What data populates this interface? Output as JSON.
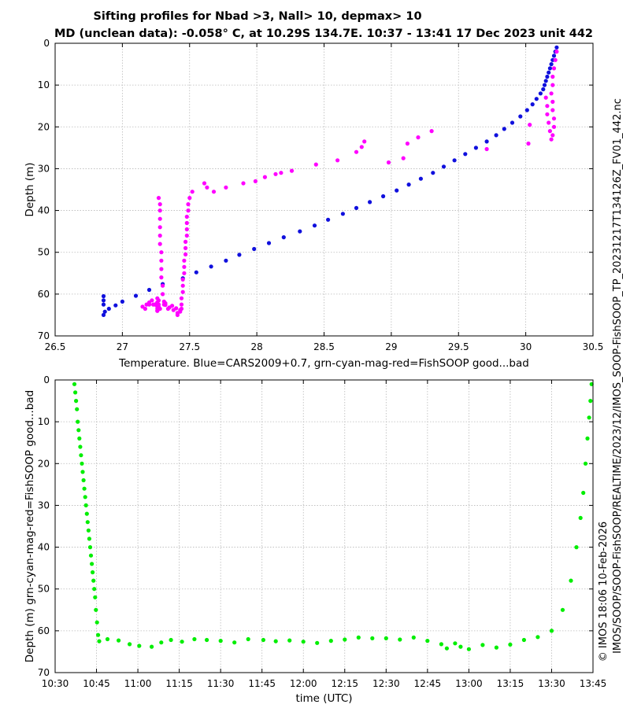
{
  "figure": {
    "title_line1": "Sifting profiles for Nbad >3, Nall> 10, depmax> 10",
    "title_line2": "MD (unclean data): -0.058° C, at 10.29S 134.7E. 10:37 - 13:41 17 Dec 2023 unit 442",
    "side_file": "IMOS_SOOP-FishSOOP_TP_20231217T134126Z_FV01_442.nc",
    "side_path": "IMOS/SOOP/SOOP-FishSOOP/REALTIME/2023/12/",
    "side_copyright": "© IMOS 18:06 10-Feb-2026"
  },
  "colors": {
    "blue": "#1010dd",
    "magenta": "#ff00ff",
    "green": "#00ee00"
  },
  "chart_data": [
    {
      "type": "scatter",
      "xlabel": "Temperature. Blue=CARS2009+0.7, grn-cyan-mag-red=FishSOOP good...bad",
      "ylabel": "Depth (m)",
      "xlim": [
        26.5,
        30.5
      ],
      "ylim": [
        0,
        70
      ],
      "y_reversed": true,
      "grid": true,
      "xticks": [
        "26.5",
        "27",
        "27.5",
        "28",
        "28.5",
        "29",
        "29.5",
        "30",
        "30.5"
      ],
      "yticks": [
        "0",
        "10",
        "20",
        "30",
        "40",
        "50",
        "60",
        "70"
      ],
      "series": [
        {
          "color": "blue",
          "x": [
            30.23,
            30.22,
            30.21,
            30.2,
            30.19,
            30.18,
            30.17,
            30.16,
            30.15,
            30.14,
            30.13,
            30.11,
            30.08,
            30.05,
            30.01,
            29.96,
            29.9,
            29.84,
            29.78,
            29.71,
            29.63,
            29.55,
            29.47,
            29.39,
            29.31,
            29.22,
            29.13,
            29.04,
            28.94,
            28.84,
            28.74,
            28.64,
            28.53,
            28.43,
            28.32,
            28.2,
            28.09,
            27.98,
            27.87,
            27.77,
            27.66,
            27.55,
            27.45,
            27.3,
            27.2,
            27.1,
            27.0,
            26.95,
            26.9,
            26.87,
            26.86,
            26.86,
            26.86,
            26.86
          ],
          "y": [
            1,
            2,
            3,
            4,
            5,
            6,
            7,
            8,
            9,
            10,
            11,
            12,
            13.3,
            14.6,
            16,
            17.5,
            19,
            20.5,
            22,
            23.5,
            25,
            26.5,
            28,
            29.5,
            31,
            32.4,
            33.8,
            35.2,
            36.6,
            38,
            39.4,
            40.8,
            42.2,
            43.6,
            45,
            46.4,
            47.8,
            49.2,
            50.6,
            52,
            53.4,
            54.8,
            56.2,
            57.6,
            59,
            60.4,
            61.8,
            62.7,
            63.5,
            64.2,
            65,
            60.5,
            61.5,
            62.5
          ]
        },
        {
          "color": "magenta",
          "x": [
            30.23,
            30.22,
            30.21,
            30.2,
            30.2,
            30.19,
            30.2,
            30.2,
            30.21,
            30.21,
            30.2,
            30.19,
            30.18,
            30.17,
            30.16,
            30.16,
            30.15,
            30.03,
            30.02,
            29.71,
            29.3,
            29.2,
            29.12,
            29.09,
            28.98,
            28.8,
            28.78,
            28.74,
            28.6,
            28.44,
            28.26,
            28.18,
            28.14,
            28.06,
            27.99,
            27.9,
            27.77,
            27.68,
            27.63,
            27.61,
            27.52,
            27.5,
            27.49,
            27.49,
            27.48,
            27.48,
            27.48,
            27.48,
            27.47,
            27.47,
            27.47,
            27.46,
            27.46,
            27.46,
            27.45,
            27.45,
            27.45,
            27.44,
            27.44,
            27.44,
            27.43,
            27.43,
            27.41,
            27.41,
            27.38,
            27.35,
            27.32,
            27.32,
            27.31,
            27.3,
            27.3,
            27.29,
            27.29,
            27.29,
            27.29,
            27.28,
            27.28,
            27.28,
            27.28,
            27.28,
            27.28,
            27.27,
            27.27,
            27.27,
            27.27,
            27.27,
            27.26,
            27.26,
            27.26,
            27.26,
            27.26,
            27.26,
            27.26,
            27.26,
            27.23,
            27.2,
            27.18,
            27.15,
            27.17,
            27.2,
            27.22,
            27.24,
            27.28,
            27.31,
            27.34,
            27.37,
            27.4
          ],
          "y": [
            2,
            4,
            6,
            8,
            10,
            12,
            14,
            16,
            18,
            20,
            22,
            23,
            21,
            19,
            17,
            15,
            13,
            19.5,
            24,
            25.3,
            21,
            22.5,
            24,
            27.5,
            28.5,
            23.5,
            24.8,
            26,
            28,
            29,
            30.5,
            31,
            31.3,
            32,
            33,
            33.5,
            34.5,
            35.5,
            34.5,
            33.5,
            35.5,
            37,
            38.5,
            40,
            41.5,
            43,
            44.5,
            46,
            47.5,
            49,
            50.5,
            52,
            53.5,
            55,
            56.5,
            58,
            59.5,
            61,
            62.5,
            63.5,
            63.8,
            64.2,
            65,
            64.5,
            63.8,
            63.2,
            62.6,
            62.2,
            61.8,
            60,
            58,
            56,
            54,
            52,
            50,
            48,
            46,
            44,
            42,
            40,
            38.5,
            37,
            61.5,
            62.5,
            63,
            63.5,
            64,
            62,
            61,
            62,
            62.5,
            63,
            63.5,
            64,
            62.5,
            62,
            62.5,
            63,
            63.5,
            62.5,
            61.5,
            62.5,
            63.5,
            62.5,
            63.5,
            62.8,
            63.4
          ]
        }
      ]
    },
    {
      "type": "scatter",
      "xlabel": "time (UTC)",
      "ylabel": "Depth (m) grn-cyan-mag-red=FishSOOP good...bad",
      "xlim_minutes": [
        630,
        825
      ],
      "ylim": [
        0,
        70
      ],
      "y_reversed": true,
      "grid": true,
      "xticks": [
        "10:30",
        "10:45",
        "11:00",
        "11:15",
        "11:30",
        "11:45",
        "12:00",
        "12:15",
        "12:30",
        "12:45",
        "13:00",
        "13:15",
        "13:30",
        "13:45"
      ],
      "yticks": [
        "0",
        "10",
        "20",
        "30",
        "40",
        "50",
        "60",
        "70"
      ],
      "series": [
        {
          "color": "green",
          "x_minutes": [
            637.0,
            637.3,
            637.6,
            637.9,
            638.2,
            638.5,
            638.8,
            639.1,
            639.4,
            639.7,
            640.0,
            640.3,
            640.6,
            640.9,
            641.2,
            641.5,
            641.8,
            642.1,
            642.4,
            642.7,
            643.0,
            643.3,
            643.6,
            643.9,
            644.2,
            644.5,
            644.8,
            645.2,
            645.6,
            646.0,
            649.0,
            653.0,
            657.0,
            660.5,
            665.0,
            668.5,
            672.0,
            676.0,
            680.5,
            685.0,
            690.0,
            695.0,
            700.0,
            705.5,
            710.0,
            715.0,
            720.0,
            725.0,
            730.0,
            735.0,
            740.0,
            745.0,
            750.0,
            755.0,
            760.0,
            765.0,
            770.0,
            772.0,
            775.0,
            777.0,
            780.0,
            785.0,
            790.0,
            795.0,
            800.0,
            805.0,
            810.0,
            814.0,
            817.0,
            819.0,
            820.5,
            821.5,
            822.3,
            823.0,
            823.6,
            824.1,
            824.5
          ],
          "y": [
            1,
            3,
            5,
            7,
            10,
            12,
            14,
            16,
            18,
            20,
            22,
            24,
            26,
            28,
            30,
            32,
            34,
            36,
            38,
            40,
            42,
            44,
            46,
            48,
            50,
            52,
            55,
            58,
            61,
            62.5,
            62,
            62.3,
            63.2,
            63.6,
            63.8,
            62.8,
            62.2,
            62.6,
            62,
            62.2,
            62.4,
            62.8,
            62,
            62.2,
            62.5,
            62.3,
            62.6,
            62.9,
            62.4,
            62.1,
            61.6,
            61.8,
            61.8,
            62.1,
            61.6,
            62.4,
            63.2,
            64.2,
            63,
            63.8,
            64.4,
            63.4,
            64,
            63.3,
            62.2,
            61.5,
            60,
            55,
            48,
            40,
            33,
            27,
            20,
            14,
            9,
            5,
            1
          ]
        }
      ]
    }
  ]
}
